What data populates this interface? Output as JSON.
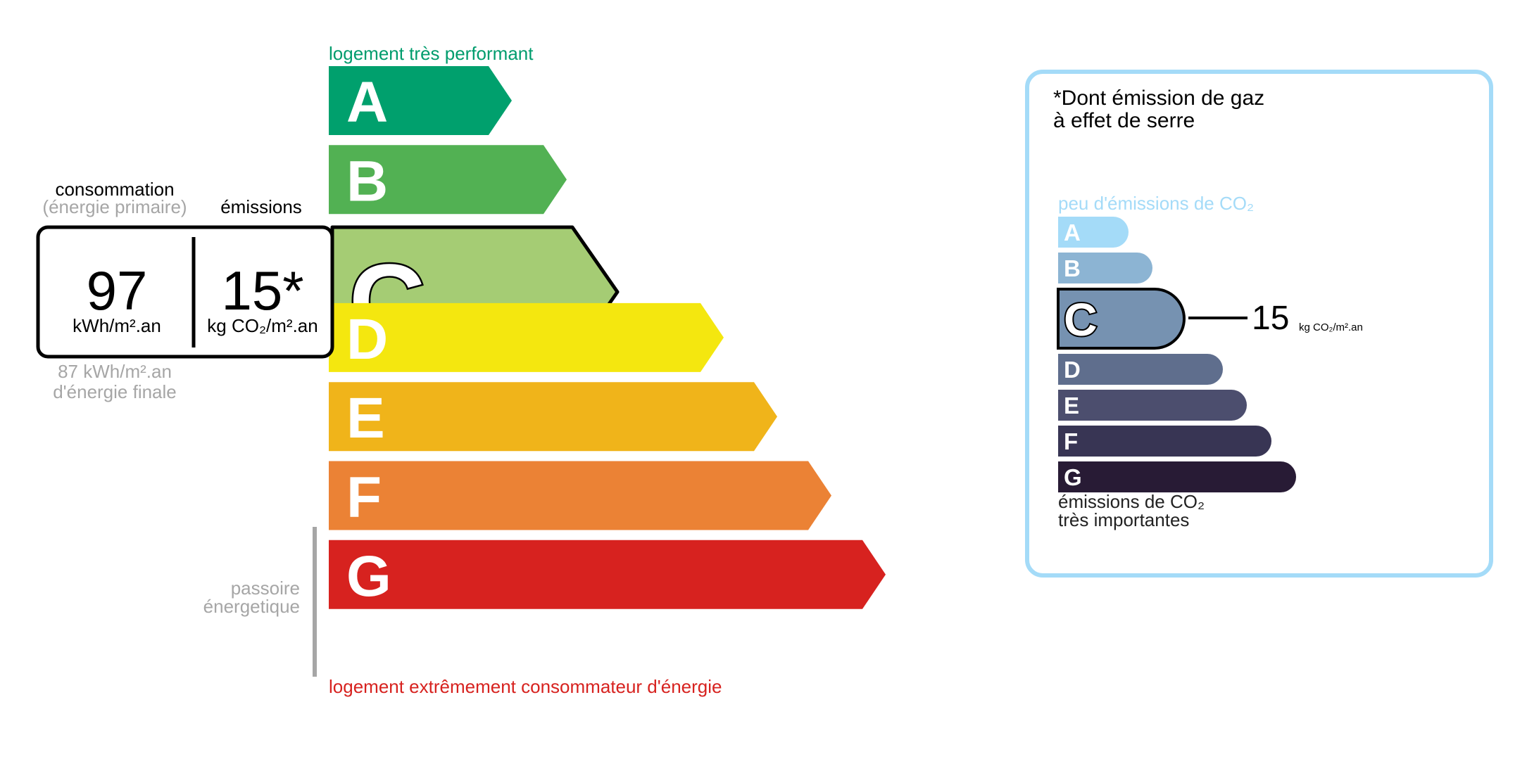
{
  "energy": {
    "top_label": "logement très performant",
    "bottom_label": "logement extrêmement consommateur d'énergie",
    "consumption_title": "consommation",
    "consumption_subtitle": "(énergie primaire)",
    "emissions_title": "émissions",
    "consumption_value": "97",
    "consumption_unit": "kWh/m².an",
    "emissions_value": "15*",
    "emissions_unit": "kg CO₂/m².an",
    "final_energy_line1": "87 kWh/m².an",
    "final_energy_line2": "d'énergie finale",
    "passoire_line1": "passoire",
    "passoire_line2": "énergetique",
    "current_class": "C",
    "classes": [
      {
        "letter": "A",
        "color": "#00a06d"
      },
      {
        "letter": "B",
        "color": "#52b153"
      },
      {
        "letter": "C",
        "color": "#a5cc74"
      },
      {
        "letter": "D",
        "color": "#f4e70f"
      },
      {
        "letter": "E",
        "color": "#f0b41a"
      },
      {
        "letter": "F",
        "color": "#eb8235"
      },
      {
        "letter": "G",
        "color": "#d7221f"
      }
    ]
  },
  "ges": {
    "title_line1": "*Dont émission de gaz",
    "title_line2": "à effet de serre",
    "top_label": "peu d'émissions de CO₂",
    "bottom_label_line1": "émissions de CO₂",
    "bottom_label_line2": "très importantes",
    "value": "15",
    "unit": "kg CO₂/m².an",
    "current_class": "C",
    "classes": [
      {
        "letter": "A",
        "color": "#a4dbf8"
      },
      {
        "letter": "B",
        "color": "#8cb4d3"
      },
      {
        "letter": "C",
        "color": "#7692b1"
      },
      {
        "letter": "D",
        "color": "#5f6e8d"
      },
      {
        "letter": "E",
        "color": "#4c4e6e"
      },
      {
        "letter": "F",
        "color": "#383554"
      },
      {
        "letter": "G",
        "color": "#281b35"
      }
    ]
  },
  "colors": {
    "top_label": "#009c6d",
    "bottom_label": "#d7221f",
    "muted": "#a6a6a6",
    "frame": "#a4dbf8",
    "ges_top_label": "#a4dbf8",
    "ink": "#000000"
  }
}
